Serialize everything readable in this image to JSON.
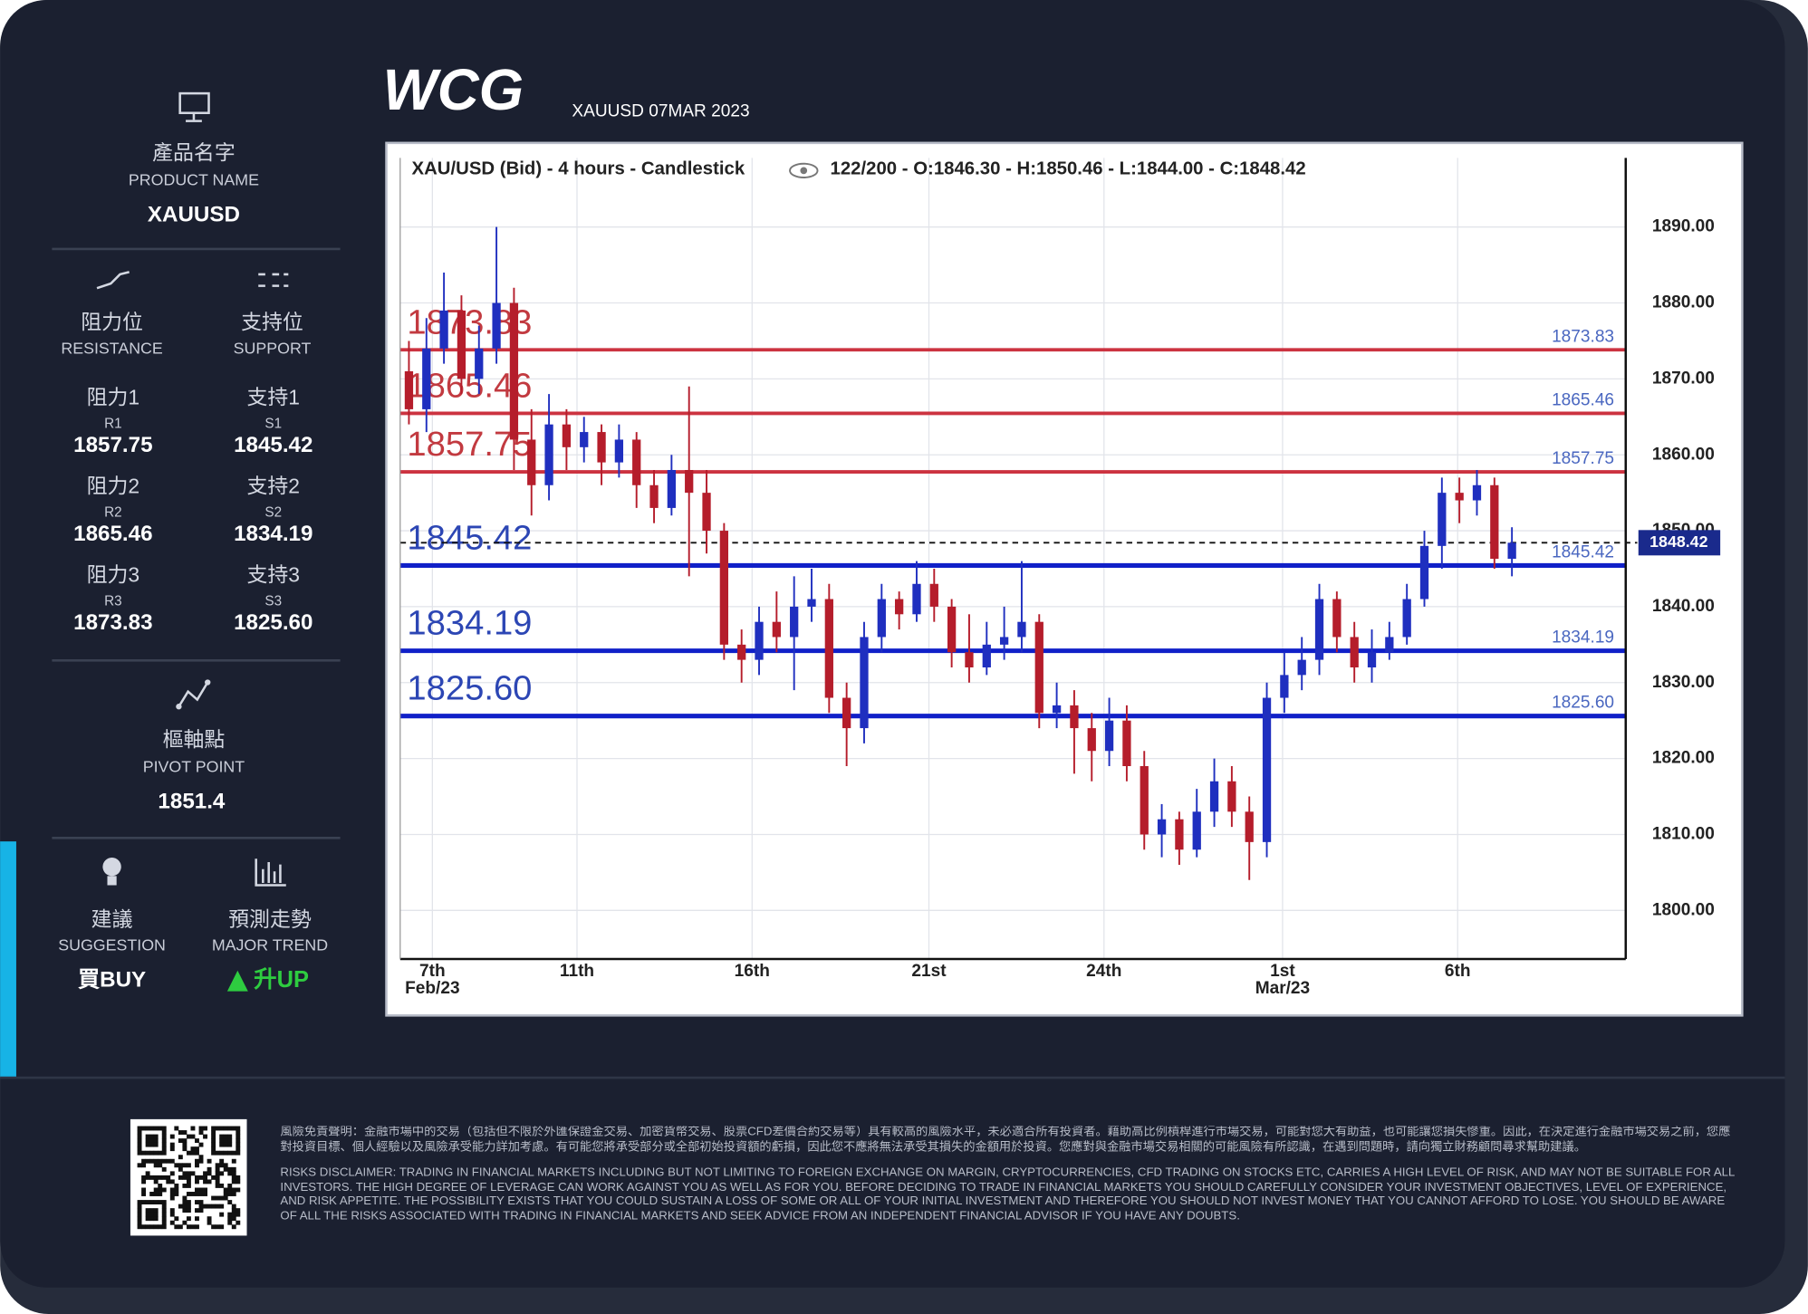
{
  "header": {
    "logo": "WCG",
    "subtitle": "XAUUSD 07MAR 2023"
  },
  "sidebar": {
    "product": {
      "zh": "產品名字",
      "en": "PRODUCT NAME",
      "value": "XAUUSD"
    },
    "resistance_header": {
      "zh": "阻力位",
      "en": "RESISTANCE"
    },
    "support_header": {
      "zh": "支持位",
      "en": "SUPPORT"
    },
    "resistance": [
      {
        "zh": "阻力1",
        "code": "R1",
        "value": "1857.75"
      },
      {
        "zh": "阻力2",
        "code": "R2",
        "value": "1865.46"
      },
      {
        "zh": "阻力3",
        "code": "R3",
        "value": "1873.83"
      }
    ],
    "support": [
      {
        "zh": "支持1",
        "code": "S1",
        "value": "1845.42"
      },
      {
        "zh": "支持2",
        "code": "S2",
        "value": "1834.19"
      },
      {
        "zh": "支持3",
        "code": "S3",
        "value": "1825.60"
      }
    ],
    "pivot": {
      "zh": "樞軸點",
      "en": "PIVOT POINT",
      "value": "1851.4"
    },
    "suggestion": {
      "zh": "建議",
      "en": "SUGGESTION",
      "value": "買BUY"
    },
    "trend": {
      "zh": "預測走勢",
      "en": "MAJOR TREND",
      "value": "升UP"
    }
  },
  "chart_data": {
    "type": "candlestick",
    "title": "XAU/USD (Bid) - 4 hours - Candlestick",
    "subtitle": "122/200 - O:1846.30 - H:1850.46 - L:1844.00 - C:1848.42",
    "up_color": "#1f2fbf",
    "down_color": "#b51d2b",
    "xlim": [
      0,
      70
    ],
    "ylim": [
      1793.6,
      1899.1
    ],
    "xticks": [
      {
        "value": 1.84,
        "label": "7th"
      },
      {
        "value": 10.1,
        "label": "11th"
      },
      {
        "value": 20.1,
        "label": "16th"
      },
      {
        "value": 30.2,
        "label": "21st"
      },
      {
        "value": 40.2,
        "label": "24th"
      },
      {
        "value": 50.4,
        "label": "1st"
      },
      {
        "value": 60.4,
        "label": "6th"
      }
    ],
    "xtick_sublabels": [
      "Feb/23",
      null,
      null,
      null,
      null,
      "Mar/23",
      null
    ],
    "yticks": [
      {
        "value": 1800,
        "label": "1800.00"
      },
      {
        "value": 1810,
        "label": "1810.00"
      },
      {
        "value": 1820,
        "label": "1820.00"
      },
      {
        "value": 1830,
        "label": "1830.00"
      },
      {
        "value": 1840,
        "label": "1840.00"
      },
      {
        "value": 1850,
        "label": "1850.00"
      },
      {
        "value": 1860,
        "label": "1860.00"
      },
      {
        "value": 1870,
        "label": "1870.00"
      },
      {
        "value": 1880,
        "label": "1880.00"
      },
      {
        "value": 1890,
        "label": "1890.00"
      }
    ],
    "grid": true,
    "levels": [
      {
        "value": 1873.83,
        "label": "1873.83",
        "color": "#cc3340"
      },
      {
        "value": 1865.46,
        "label": "1865.46",
        "color": "#cc3340"
      },
      {
        "value": 1857.75,
        "label": "1857.75",
        "color": "#cc3340"
      },
      {
        "value": 1845.42,
        "label": "1845.42",
        "color": "#1020c8"
      },
      {
        "value": 1834.19,
        "label": "1834.19",
        "color": "#1020c8"
      },
      {
        "value": 1825.6,
        "label": "1825.60",
        "color": "#1020c8"
      }
    ],
    "current_price": 1848.42,
    "x": [
      0.5,
      1.5,
      2.5,
      3.5,
      4.5,
      5.5,
      6.5,
      7.5,
      8.5,
      9.5,
      10.5,
      11.5,
      12.5,
      13.5,
      14.5,
      15.5,
      16.5,
      17.5,
      18.5,
      19.5,
      20.5,
      21.5,
      22.5,
      23.5,
      24.5,
      25.5,
      26.5,
      27.5,
      28.5,
      29.5,
      30.5,
      31.5,
      32.5,
      33.5,
      34.5,
      35.5,
      36.5,
      37.5,
      38.5,
      39.5,
      40.5,
      41.5,
      42.5,
      43.5,
      44.5,
      45.5,
      46.5,
      47.5,
      48.5,
      49.5,
      50.5,
      51.5,
      52.5,
      53.5,
      54.5,
      55.5,
      56.5,
      57.5,
      58.5,
      59.5,
      60.5,
      61.5,
      62.5,
      63.5
    ],
    "ohlc": [
      [
        1871,
        1875,
        1864,
        1866
      ],
      [
        1866,
        1878,
        1863,
        1874
      ],
      [
        1874,
        1884,
        1872,
        1879
      ],
      [
        1879,
        1881,
        1868,
        1870
      ],
      [
        1870,
        1877,
        1868,
        1874
      ],
      [
        1874,
        1890,
        1872,
        1880
      ],
      [
        1880,
        1882,
        1858,
        1862
      ],
      [
        1862,
        1866,
        1852,
        1856
      ],
      [
        1856,
        1868,
        1854,
        1864
      ],
      [
        1864,
        1866,
        1858,
        1861
      ],
      [
        1861,
        1865,
        1859,
        1863
      ],
      [
        1863,
        1864,
        1856,
        1859
      ],
      [
        1859,
        1864,
        1857,
        1862
      ],
      [
        1862,
        1863,
        1853,
        1856
      ],
      [
        1856,
        1858,
        1851,
        1853
      ],
      [
        1853,
        1860,
        1852,
        1858
      ],
      [
        1858,
        1869,
        1844,
        1855
      ],
      [
        1855,
        1858,
        1847,
        1850
      ],
      [
        1850,
        1851,
        1833,
        1835
      ],
      [
        1835,
        1837,
        1830,
        1833
      ],
      [
        1833,
        1840,
        1831,
        1838
      ],
      [
        1838,
        1842,
        1834,
        1836
      ],
      [
        1836,
        1844,
        1829,
        1840
      ],
      [
        1840,
        1845,
        1838,
        1841
      ],
      [
        1841,
        1843,
        1826,
        1828
      ],
      [
        1828,
        1830,
        1819,
        1824
      ],
      [
        1824,
        1838,
        1822,
        1836
      ],
      [
        1836,
        1843,
        1834,
        1841
      ],
      [
        1841,
        1842,
        1837,
        1839
      ],
      [
        1839,
        1846,
        1838,
        1843
      ],
      [
        1843,
        1845,
        1838,
        1840
      ],
      [
        1840,
        1841,
        1832,
        1834
      ],
      [
        1834,
        1839,
        1830,
        1832
      ],
      [
        1832,
        1838,
        1831,
        1835
      ],
      [
        1835,
        1840,
        1833,
        1836
      ],
      [
        1836,
        1846,
        1834,
        1838
      ],
      [
        1838,
        1839,
        1824,
        1826
      ],
      [
        1826,
        1830,
        1824,
        1827
      ],
      [
        1827,
        1829,
        1818,
        1824
      ],
      [
        1824,
        1826,
        1817,
        1821
      ],
      [
        1821,
        1828,
        1819,
        1825
      ],
      [
        1825,
        1827,
        1817,
        1819
      ],
      [
        1819,
        1821,
        1808,
        1810
      ],
      [
        1810,
        1814,
        1807,
        1812
      ],
      [
        1812,
        1813,
        1806,
        1808
      ],
      [
        1808,
        1816,
        1807,
        1813
      ],
      [
        1813,
        1820,
        1811,
        1817
      ],
      [
        1817,
        1819,
        1811,
        1813
      ],
      [
        1813,
        1815,
        1804,
        1809
      ],
      [
        1809,
        1830,
        1807,
        1828
      ],
      [
        1828,
        1834,
        1826,
        1831
      ],
      [
        1831,
        1836,
        1829,
        1833
      ],
      [
        1833,
        1843,
        1831,
        1841
      ],
      [
        1841,
        1842,
        1834,
        1836
      ],
      [
        1836,
        1838,
        1830,
        1832
      ],
      [
        1832,
        1837,
        1830,
        1834
      ],
      [
        1834,
        1838,
        1833,
        1836
      ],
      [
        1836,
        1843,
        1835,
        1841
      ],
      [
        1841,
        1850,
        1840,
        1848
      ],
      [
        1848,
        1857,
        1845,
        1855
      ],
      [
        1855,
        1857,
        1851,
        1854
      ],
      [
        1854,
        1858,
        1852,
        1856
      ],
      [
        1856,
        1857,
        1845,
        1846.3
      ],
      [
        1846.3,
        1850.46,
        1844,
        1848.42
      ]
    ]
  },
  "footer": {
    "disclaimer_zh": "風險免責聲明：金融市場中的交易（包括但不限於外匯保證金交易、加密貨幣交易、股票CFD差價合約交易等）具有較高的風險水平，未必適合所有投資者。藉助高比例槓桿進行市場交易，可能對您大有助益，也可能讓您損失慘重。因此，在決定進行金融市場交易之前，您應對投資目標、個人經驗以及風險承受能力詳加考慮。有可能您將承受部分或全部初始投資額的虧損，因此您不應將無法承受其損失的金額用於投資。您應對與金融市場交易相關的可能風險有所認識，在遇到問題時，請向獨立財務顧問尋求幫助建議。",
    "disclaimer_en": "RISKS DISCLAIMER: TRADING IN FINANCIAL MARKETS INCLUDING BUT NOT LIMITING TO FOREIGN EXCHANGE ON MARGIN, CRYPTOCURRENCIES, CFD TRADING ON STOCKS ETC, CARRIES A HIGH LEVEL OF RISK, AND MAY NOT BE SUITABLE FOR ALL INVESTORS. THE HIGH DEGREE OF LEVERAGE CAN WORK AGAINST YOU AS WELL AS FOR YOU. BEFORE DECIDING TO TRADE IN FINANCIAL MARKETS YOU SHOULD CAREFULLY CONSIDER YOUR INVESTMENT OBJECTIVES, LEVEL OF EXPERIENCE, AND RISK APPETITE. THE POSSIBILITY EXISTS THAT YOU COULD SUSTAIN A LOSS OF SOME OR ALL OF YOUR INITIAL INVESTMENT AND THEREFORE YOU SHOULD NOT INVEST MONEY THAT YOU CANNOT AFFORD TO LOSE. YOU SHOULD BE AWARE OF ALL THE RISKS ASSOCIATED WITH TRADING IN FINANCIAL MARKETS AND SEEK ADVICE FROM AN INDEPENDENT FINANCIAL ADVISOR IF YOU HAVE ANY DOUBTS."
  }
}
